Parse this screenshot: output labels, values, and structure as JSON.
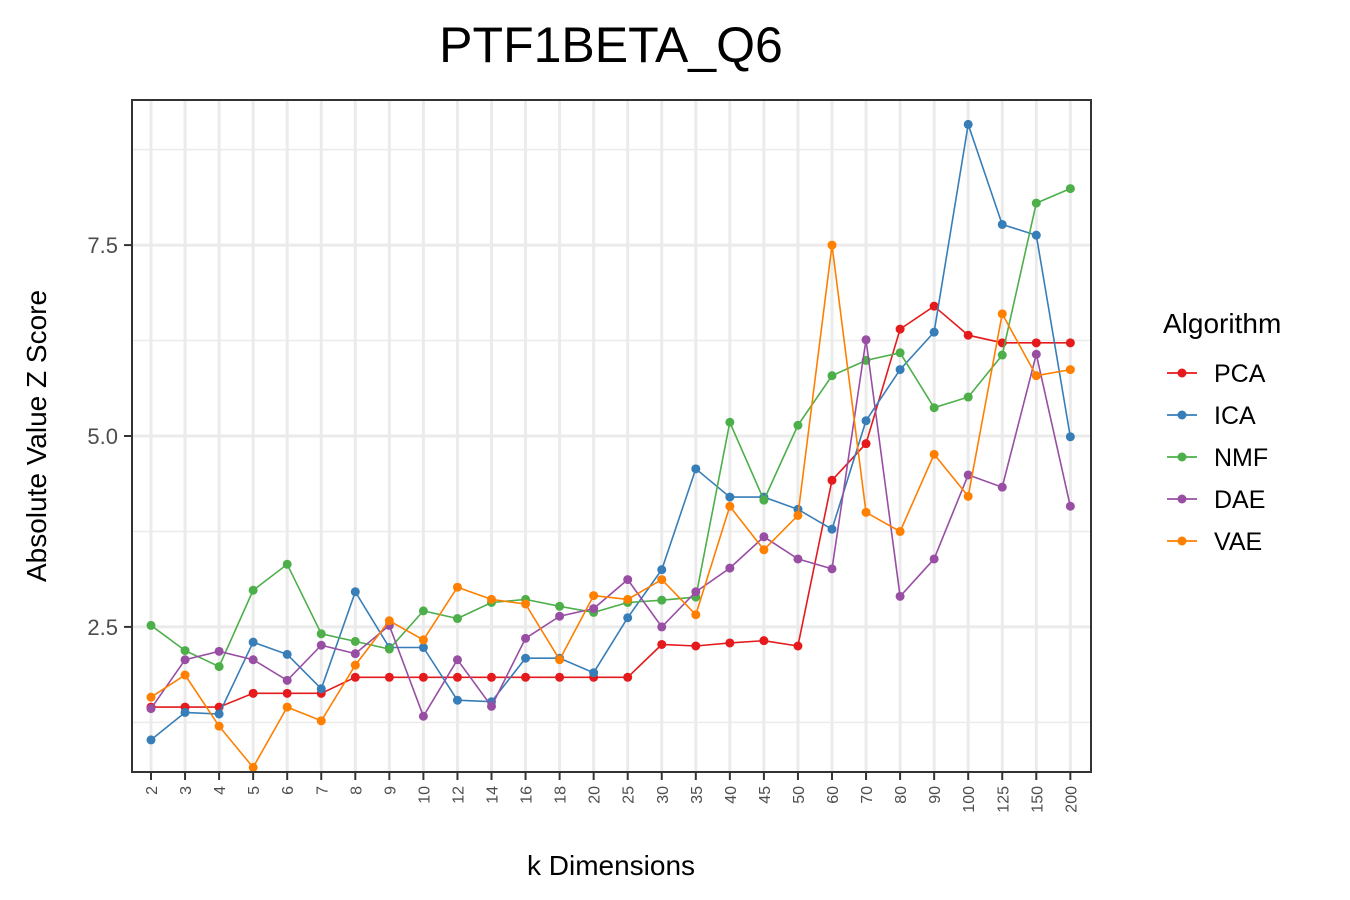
{
  "chart_data": {
    "type": "line",
    "title": "PTF1BETA_Q6",
    "xlabel": "k Dimensions",
    "ylabel": "Absolute Value Z Score",
    "categories": [
      "2",
      "3",
      "4",
      "5",
      "6",
      "7",
      "8",
      "9",
      "10",
      "12",
      "14",
      "16",
      "18",
      "20",
      "25",
      "30",
      "35",
      "40",
      "45",
      "50",
      "60",
      "70",
      "80",
      "90",
      "100",
      "125",
      "150",
      "200"
    ],
    "ylim": [
      0.6,
      9.4
    ],
    "yticks": [
      2.5,
      5.0,
      7.5
    ],
    "ytick_labels": [
      "2.5",
      "5.0",
      "7.5"
    ],
    "grid": true,
    "legend_title": "Algorithm",
    "legend_position": "right",
    "series": [
      {
        "name": "PCA",
        "color": "#e41a1c",
        "values": [
          1.45,
          1.45,
          1.45,
          1.63,
          1.63,
          1.63,
          1.84,
          1.84,
          1.84,
          1.84,
          1.84,
          1.84,
          1.84,
          1.84,
          1.84,
          2.27,
          2.25,
          2.29,
          2.32,
          2.25,
          4.42,
          4.9,
          6.4,
          6.7,
          6.32,
          6.22,
          6.22,
          6.22
        ]
      },
      {
        "name": "ICA",
        "color": "#377eb8",
        "values": [
          1.02,
          1.38,
          1.36,
          2.3,
          2.14,
          1.69,
          2.96,
          2.23,
          2.23,
          1.54,
          1.52,
          2.09,
          2.09,
          1.9,
          2.62,
          3.25,
          4.57,
          4.2,
          4.2,
          4.04,
          3.78,
          5.2,
          5.87,
          6.36,
          9.08,
          7.77,
          7.63,
          4.99
        ]
      },
      {
        "name": "NMF",
        "color": "#4daf4a",
        "values": [
          2.52,
          2.19,
          1.98,
          2.98,
          3.32,
          2.41,
          2.31,
          2.21,
          2.71,
          2.61,
          2.82,
          2.86,
          2.77,
          2.69,
          2.82,
          2.85,
          2.89,
          5.18,
          4.16,
          5.14,
          5.79,
          5.99,
          6.09,
          5.37,
          5.51,
          6.06,
          8.05,
          8.24
        ]
      },
      {
        "name": "DAE",
        "color": "#984ea3",
        "values": [
          1.43,
          2.07,
          2.18,
          2.07,
          1.8,
          2.26,
          2.15,
          2.52,
          1.33,
          2.07,
          1.46,
          2.35,
          2.64,
          2.74,
          3.12,
          2.5,
          2.96,
          3.27,
          3.68,
          3.39,
          3.26,
          6.26,
          2.9,
          3.39,
          4.49,
          4.33,
          6.07,
          4.08
        ]
      },
      {
        "name": "VAE",
        "color": "#ff7f00",
        "values": [
          1.58,
          1.87,
          1.2,
          0.66,
          1.45,
          1.27,
          2.0,
          2.58,
          2.33,
          3.02,
          2.86,
          2.8,
          2.07,
          2.91,
          2.86,
          3.12,
          2.66,
          4.08,
          3.51,
          3.96,
          7.5,
          4.0,
          3.75,
          4.76,
          4.21,
          6.6,
          5.79,
          5.87
        ]
      }
    ]
  }
}
